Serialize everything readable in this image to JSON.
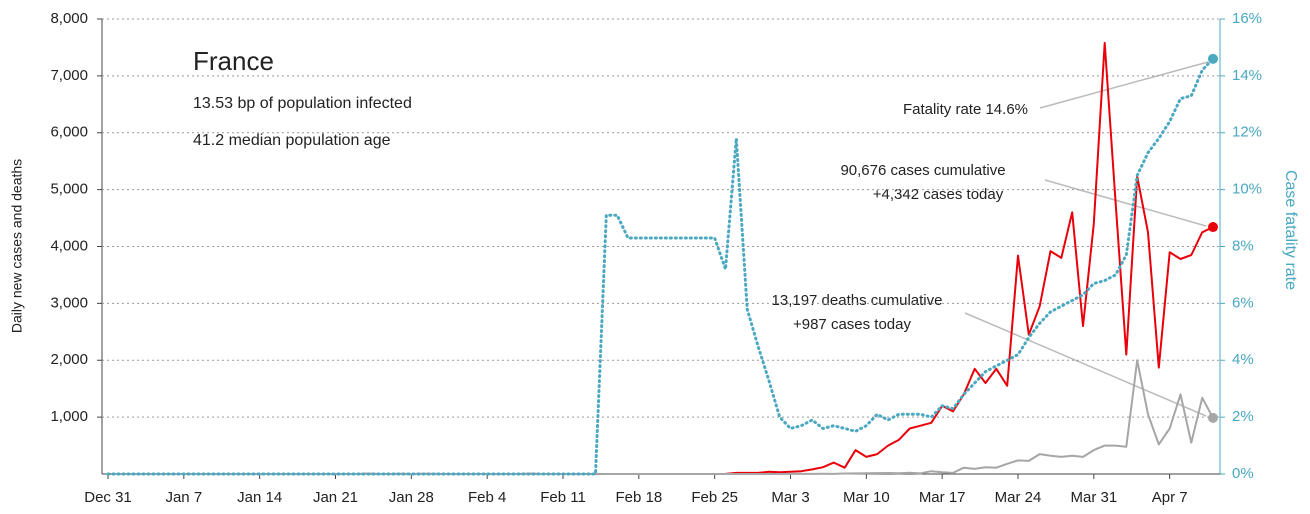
{
  "chart_data": {
    "type": "line",
    "title": "France",
    "subtitle": [
      "13.53 bp of population infected",
      "41.2 median population age"
    ],
    "ylabel": "Daily new cases and deaths",
    "y2label": "Case fatality rate",
    "annotations": [
      "Fatality rate 14.6%",
      "90,676  cases cumulative",
      "+4,342  cases today",
      "13,197  deaths cumulative",
      "+987  cases today"
    ],
    "grid": true,
    "x": [
      0,
      1,
      2,
      3,
      4,
      5,
      6,
      7,
      8,
      9,
      10,
      11,
      12,
      13,
      14,
      15,
      16,
      17,
      18,
      19,
      20,
      21,
      22,
      23,
      24,
      25,
      26,
      27,
      28,
      29,
      30,
      31,
      32,
      33,
      34,
      35,
      36,
      37,
      38,
      39,
      40,
      41,
      42,
      43,
      44,
      45,
      46,
      47,
      48,
      49,
      50,
      51,
      52,
      53,
      54,
      55,
      56,
      57,
      58,
      59,
      60,
      61,
      62,
      63,
      64,
      65,
      66,
      67,
      68,
      69,
      70,
      71,
      72,
      73,
      74,
      75,
      76,
      77,
      78,
      79,
      80,
      81,
      82,
      83,
      84,
      85,
      86,
      87,
      88,
      89,
      90,
      91,
      92,
      93,
      94,
      95,
      96,
      97,
      98,
      99,
      100,
      101,
      102
    ],
    "xlim": [
      0,
      102
    ],
    "xticks": [
      {
        "value": 0,
        "label": "Dec 31"
      },
      {
        "value": 7,
        "label": "Jan 7"
      },
      {
        "value": 14,
        "label": "Jan 14"
      },
      {
        "value": 21,
        "label": "Jan 21"
      },
      {
        "value": 28,
        "label": "Jan 28"
      },
      {
        "value": 35,
        "label": "Feb 4"
      },
      {
        "value": 42,
        "label": "Feb 11"
      },
      {
        "value": 49,
        "label": "Feb 18"
      },
      {
        "value": 56,
        "label": "Feb 25"
      },
      {
        "value": 63,
        "label": "Mar 3"
      },
      {
        "value": 70,
        "label": "Mar 10"
      },
      {
        "value": 77,
        "label": "Mar 17"
      },
      {
        "value": 84,
        "label": "Mar 24"
      },
      {
        "value": 91,
        "label": "Mar 31"
      },
      {
        "value": 98,
        "label": "Apr 7"
      }
    ],
    "ylim": [
      0,
      8000
    ],
    "yticks": [
      {
        "value": 1000,
        "label": "1,000"
      },
      {
        "value": 2000,
        "label": "2,000"
      },
      {
        "value": 3000,
        "label": "3,000"
      },
      {
        "value": 4000,
        "label": "4,000"
      },
      {
        "value": 5000,
        "label": "5,000"
      },
      {
        "value": 6000,
        "label": "6,000"
      },
      {
        "value": 7000,
        "label": "7,000"
      },
      {
        "value": 8000,
        "label": "8,000"
      }
    ],
    "y2lim": [
      0,
      16
    ],
    "y2ticks": [
      {
        "value": 0,
        "label": "0%"
      },
      {
        "value": 2,
        "label": "2%"
      },
      {
        "value": 4,
        "label": "4%"
      },
      {
        "value": 6,
        "label": "6%"
      },
      {
        "value": 8,
        "label": "8%"
      },
      {
        "value": 10,
        "label": "10%"
      },
      {
        "value": 12,
        "label": "12%"
      },
      {
        "value": 14,
        "label": "14%"
      },
      {
        "value": 16,
        "label": "16%"
      }
    ],
    "series": [
      {
        "name": "Cases",
        "color": "#e8000b",
        "values": [
          0,
          0,
          0,
          0,
          0,
          0,
          0,
          0,
          0,
          0,
          0,
          0,
          0,
          0,
          0,
          0,
          0,
          0,
          0,
          0,
          0,
          0,
          0,
          0,
          3,
          0,
          0,
          1,
          0,
          1,
          1,
          0,
          0,
          0,
          0,
          0,
          0,
          0,
          0,
          5,
          0,
          0,
          0,
          0,
          0,
          0,
          0,
          0,
          0,
          0,
          0,
          0,
          0,
          0,
          0,
          0,
          0,
          2,
          20,
          20,
          20,
          40,
          30,
          40,
          50,
          80,
          120,
          200,
          110,
          420,
          300,
          350,
          500,
          600,
          800,
          850,
          900,
          1200,
          1100,
          1400,
          1850,
          1600,
          1850,
          1550,
          3840,
          2450,
          2950,
          3920,
          3800,
          4600,
          2600,
          4400,
          7580,
          4800,
          2100,
          5230,
          4250,
          1870,
          3900,
          3780,
          3850,
          4250,
          4342
        ]
      },
      {
        "name": "Deaths",
        "color": "#a6a6a6",
        "values": [
          0,
          0,
          0,
          0,
          0,
          0,
          0,
          0,
          0,
          0,
          0,
          0,
          0,
          0,
          0,
          0,
          0,
          0,
          0,
          0,
          0,
          0,
          0,
          0,
          0,
          0,
          0,
          0,
          0,
          0,
          0,
          0,
          0,
          0,
          0,
          0,
          0,
          0,
          0,
          0,
          0,
          0,
          0,
          0,
          0,
          1,
          0,
          0,
          0,
          0,
          0,
          0,
          0,
          0,
          0,
          0,
          0,
          0,
          0,
          0,
          0,
          0,
          0,
          1,
          2,
          1,
          4,
          2,
          8,
          10,
          14,
          15,
          18,
          12,
          21,
          10,
          50,
          30,
          20,
          110,
          90,
          120,
          110,
          180,
          240,
          230,
          350,
          320,
          300,
          320,
          300,
          420,
          500,
          500,
          480,
          2000,
          1050,
          520,
          800,
          1400,
          550,
          1340,
          987
        ]
      },
      {
        "name": "Fatality rate",
        "color": "#4aa8c0",
        "axis": "y2",
        "dotted": true,
        "values": [
          0,
          0,
          0,
          0,
          0,
          0,
          0,
          0,
          0,
          0,
          0,
          0,
          0,
          0,
          0,
          0,
          0,
          0,
          0,
          0,
          0,
          0,
          0,
          0,
          0,
          0,
          0,
          0,
          0,
          0,
          0,
          0,
          0,
          0,
          0,
          0,
          0,
          0,
          0,
          0,
          0,
          0,
          0,
          0,
          0,
          0,
          9.1,
          9.1,
          8.3,
          8.3,
          8.3,
          8.3,
          8.3,
          8.3,
          8.3,
          8.3,
          8.3,
          7.2,
          11.8,
          5.8,
          4.5,
          3.3,
          2.0,
          1.6,
          1.7,
          1.9,
          1.6,
          1.7,
          1.6,
          1.5,
          1.7,
          2.1,
          1.9,
          2.1,
          2.1,
          2.1,
          2.0,
          2.4,
          2.3,
          2.8,
          3.2,
          3.6,
          3.8,
          4.0,
          4.2,
          4.8,
          5.3,
          5.7,
          5.9,
          6.1,
          6.3,
          6.7,
          6.8,
          7.0,
          7.7,
          10.5,
          11.3,
          11.8,
          12.4,
          13.2,
          13.3,
          14.2,
          14.6
        ]
      }
    ]
  }
}
